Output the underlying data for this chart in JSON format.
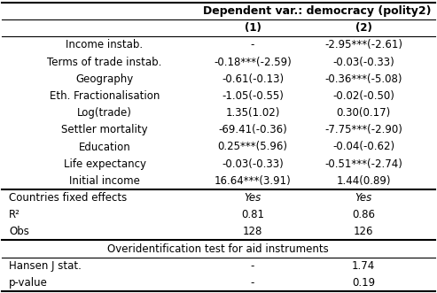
{
  "title": "Dependent var.: democracy (polity2)",
  "col_headers": [
    "(1)",
    "(2)"
  ],
  "row_labels": [
    "Income instab.",
    "Terms of trade instab.",
    "Geography",
    "Eth. Fractionalisation",
    "Log(trade)",
    "Settler mortality",
    "Education",
    "Life expectancy",
    "Initial income"
  ],
  "col1": [
    "-",
    "-0.18***(-2.59)",
    "-0.61(-0.13)",
    "-1.05(-0.55)",
    "1.35(1.02)",
    "-69.41(-0.36)",
    "0.25***(5.96)",
    "-0.03(-0.33)",
    "16.64***(3.91)"
  ],
  "col2": [
    "-2.95***(-2.61)",
    "-0.03(-0.33)",
    "-0.36***(-5.08)",
    "-0.02(-0.50)",
    "0.30(0.17)",
    "-7.75***(-2.90)",
    "-0.04(-0.62)",
    "-0.51***(-2.74)",
    "1.44(0.89)"
  ],
  "footer_rows": [
    [
      "Countries fixed effects",
      "Yes",
      "Yes"
    ],
    [
      "R²",
      "0.81",
      "0.86"
    ],
    [
      "Obs",
      "128",
      "126"
    ]
  ],
  "overid_label": "Overidentification test for aid instruments",
  "overid_rows": [
    [
      "Hansen J stat.",
      "-",
      "1.74"
    ],
    [
      "p-value",
      "-",
      "0.19"
    ]
  ],
  "font_size": 8.5,
  "title_font_size": 9.0
}
